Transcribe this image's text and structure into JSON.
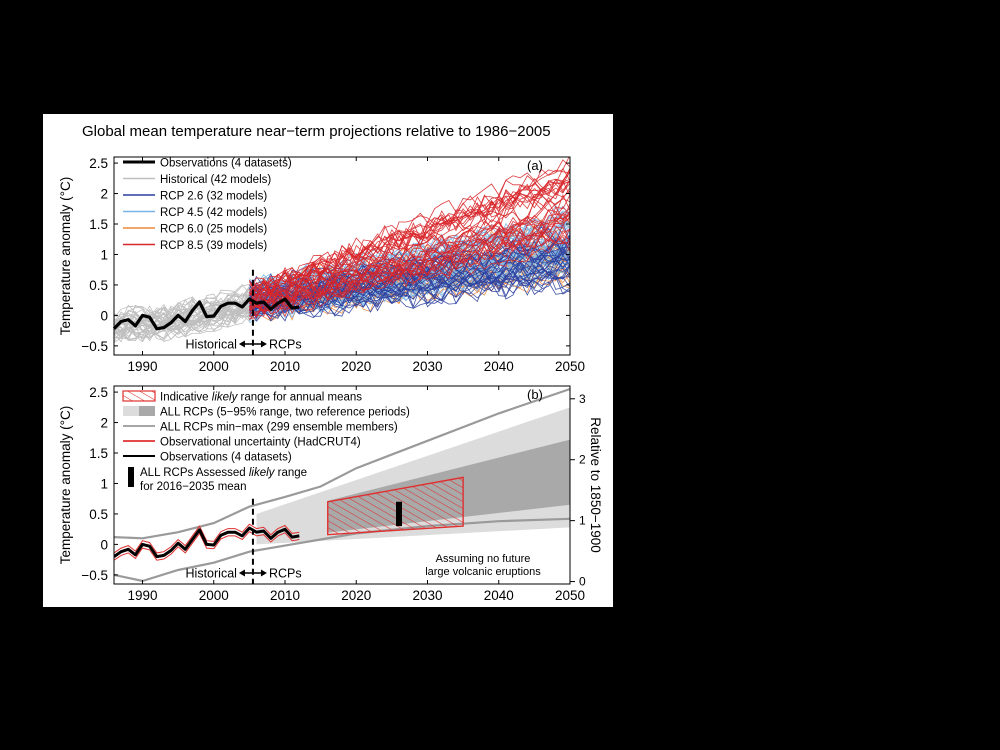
{
  "chart_data": [
    {
      "type": "line",
      "panel_label": "(a)",
      "title": "Global mean temperature near−term projections relative to 1986−2005",
      "ylabel": "Temperature anomaly  (°C)",
      "xlabel": "",
      "xlim": [
        1986,
        2050
      ],
      "ylim": [
        -0.65,
        2.6
      ],
      "x_ticks": [
        1990,
        2000,
        2010,
        2020,
        2030,
        2040,
        2050
      ],
      "y_ticks": [
        -0.5,
        0,
        0.5,
        1,
        1.5,
        2,
        2.5
      ],
      "y_tick_labels": [
        "−0.5",
        "0",
        "0.5",
        "1",
        "1.5",
        "2",
        "2.5"
      ],
      "legend_position": "top-left",
      "legend": [
        {
          "label": "Observations (4 datasets)",
          "color": "#000000"
        },
        {
          "label": "Historical (42 models)",
          "color": "#bfbfbf"
        },
        {
          "label": "RCP 2.6 (32 models)",
          "color": "#2b3f9e"
        },
        {
          "label": "RCP 4.5 (42 models)",
          "color": "#79b4e6"
        },
        {
          "label": "RCP 6.0 (25 models)",
          "color": "#f08a3c"
        },
        {
          "label": "RCP 8.5 (39 models)",
          "color": "#d8262a"
        }
      ],
      "divider_year": 2005.5,
      "divider_left_label": "Historical",
      "divider_right_label": "RCPs",
      "observations": {
        "x": [
          1986,
          1987,
          1988,
          1989,
          1990,
          1991,
          1992,
          1993,
          1994,
          1995,
          1996,
          1997,
          1998,
          1999,
          2000,
          2001,
          2002,
          2003,
          2004,
          2005,
          2006,
          2007,
          2008,
          2009,
          2010,
          2011,
          2012
        ],
        "y": [
          -0.22,
          -0.1,
          -0.07,
          -0.17,
          0.0,
          -0.03,
          -0.22,
          -0.2,
          -0.12,
          0.0,
          -0.1,
          0.08,
          0.22,
          -0.02,
          -0.01,
          0.15,
          0.2,
          0.2,
          0.14,
          0.27,
          0.2,
          0.22,
          0.1,
          0.2,
          0.27,
          0.12,
          0.14
        ]
      },
      "historical_spread": {
        "x": [
          1986,
          1996,
          2005
        ],
        "low": [
          -0.45,
          -0.4,
          -0.1
        ],
        "high": [
          0.1,
          0.3,
          0.55
        ]
      },
      "series": [
        {
          "key": "rcp26",
          "color": "#2b3f9e",
          "x": [
            2006,
            2050
          ],
          "median": [
            0.25,
            0.95
          ],
          "low": [
            0.0,
            0.5
          ],
          "high": [
            0.5,
            1.4
          ]
        },
        {
          "key": "rcp45",
          "color": "#79b4e6",
          "x": [
            2006,
            2050
          ],
          "median": [
            0.25,
            1.2
          ],
          "low": [
            0.0,
            0.7
          ],
          "high": [
            0.5,
            1.7
          ]
        },
        {
          "key": "rcp60",
          "color": "#f08a3c",
          "x": [
            2006,
            2050
          ],
          "median": [
            0.25,
            1.05
          ],
          "low": [
            0.0,
            0.6
          ],
          "high": [
            0.5,
            1.55
          ]
        },
        {
          "key": "rcp85",
          "color": "#d8262a",
          "x": [
            2006,
            2050
          ],
          "median": [
            0.25,
            1.6
          ],
          "low": [
            0.0,
            1.1
          ],
          "high": [
            0.5,
            2.5
          ]
        }
      ]
    },
    {
      "type": "area",
      "panel_label": "(b)",
      "ylabel": "Temperature anomaly  (°C)",
      "ylabel_right": "Relative to 1850−1900",
      "xlim": [
        1986,
        2050
      ],
      "ylim": [
        -0.65,
        2.6
      ],
      "x_ticks": [
        1990,
        2000,
        2010,
        2020,
        2030,
        2040,
        2050
      ],
      "y_ticks": [
        -0.5,
        0,
        0.5,
        1,
        1.5,
        2,
        2.5
      ],
      "y_tick_labels": [
        "−0.5",
        "0",
        "0.5",
        "1",
        "1.5",
        "2",
        "2.5"
      ],
      "right_ticks": [
        0,
        1,
        2,
        3
      ],
      "right_offset": 0.61,
      "legend_position": "top-left",
      "legend": [
        {
          "label_pre": "Indicative ",
          "label_em": "likely",
          "label_post": " range for annual means",
          "swatch": "hatch"
        },
        {
          "label": "ALL RCPs (5−95% range, two reference periods)",
          "swatch": "band"
        },
        {
          "label": "ALL RCPs min−max (299 ensemble members)",
          "swatch": "gray-line"
        },
        {
          "label": "Observational uncertainty (HadCRUT4)",
          "swatch": "red-line"
        },
        {
          "label": "Observations (4 datasets)",
          "swatch": "black-line"
        }
      ],
      "assessed_range_label_pre": "ALL RCPs Assessed ",
      "assessed_range_label_em": "likely",
      "assessed_range_label_post": " range",
      "assessed_range_label_line2": "for 2016−2035 mean",
      "annotation_line1": "Assuming no future",
      "annotation_line2": "large volcanic eruptions",
      "divider_year": 2005.5,
      "divider_left_label": "Historical",
      "divider_right_label": "RCPs",
      "band_outer": {
        "x": [
          2006,
          2050
        ],
        "low": [
          0.0,
          0.28
        ],
        "high": [
          0.5,
          2.25
        ]
      },
      "band_inner": {
        "x": [
          2006,
          2050
        ],
        "low": [
          0.06,
          0.65
        ],
        "high": [
          0.42,
          1.72
        ]
      },
      "minmax_low": {
        "x": [
          1986,
          1990,
          1995,
          2000,
          2005,
          2010,
          2015,
          2020,
          2030,
          2040,
          2050
        ],
        "y": [
          -0.5,
          -0.6,
          -0.42,
          -0.3,
          -0.12,
          -0.02,
          0.08,
          0.18,
          0.3,
          0.38,
          0.42
        ]
      },
      "minmax_high": {
        "x": [
          1986,
          1990,
          1995,
          2000,
          2005,
          2010,
          2015,
          2020,
          2030,
          2040,
          2050
        ],
        "y": [
          0.12,
          0.1,
          0.2,
          0.35,
          0.62,
          0.78,
          0.95,
          1.25,
          1.7,
          2.15,
          2.55
        ]
      },
      "likely_range_annual_means": {
        "x": [
          2016,
          2035
        ],
        "low": [
          0.16,
          0.3
        ],
        "high": [
          0.7,
          1.1
        ]
      },
      "assessed_likely_range_2016_2035": {
        "x": 2026,
        "low": 0.3,
        "high": 0.7
      },
      "observations": {
        "x": [
          1986,
          1987,
          1988,
          1989,
          1990,
          1991,
          1992,
          1993,
          1994,
          1995,
          1996,
          1997,
          1998,
          1999,
          2000,
          2001,
          2002,
          2003,
          2004,
          2005,
          2006,
          2007,
          2008,
          2009,
          2010,
          2011,
          2012
        ],
        "y": [
          -0.2,
          -0.12,
          -0.08,
          -0.17,
          0.0,
          -0.03,
          -0.2,
          -0.18,
          -0.1,
          0.02,
          -0.08,
          0.08,
          0.24,
          0.0,
          -0.01,
          0.15,
          0.2,
          0.2,
          0.14,
          0.27,
          0.2,
          0.22,
          0.1,
          0.2,
          0.25,
          0.12,
          0.14
        ]
      }
    }
  ]
}
